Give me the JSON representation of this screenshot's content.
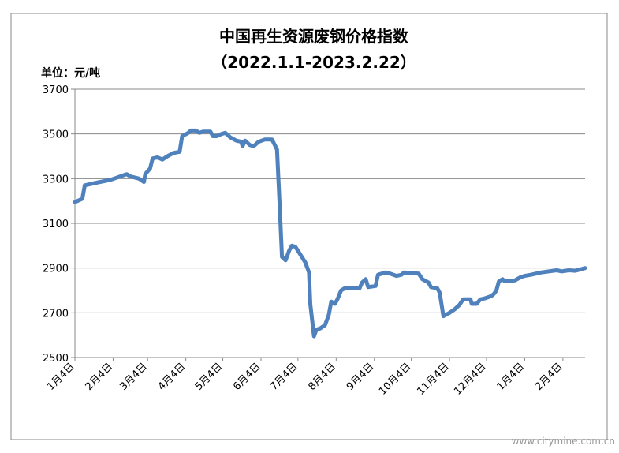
{
  "chart_data": {
    "type": "line",
    "title": "中国再生资源废钢价格指数",
    "subtitle": "（2022.1.1-2023.2.22）",
    "y_label": "单位：元/吨",
    "watermark": "www.citymine.com.cn",
    "grid": true,
    "series": [
      {
        "color": "#4f81bd",
        "x": [
          3,
          9,
          11,
          19,
          32,
          45,
          48,
          55,
          59,
          60,
          64,
          66,
          70,
          74,
          78,
          83,
          88,
          90,
          95,
          97,
          101,
          104,
          107,
          113,
          115,
          118,
          122,
          125,
          129,
          134,
          138,
          139,
          141,
          145,
          148,
          152,
          157,
          163,
          167,
          169,
          171,
          174,
          177,
          179,
          182,
          186,
          190,
          193,
          194,
          197,
          199,
          202,
          206,
          209,
          211,
          214,
          216,
          219,
          222,
          234,
          236,
          239,
          241,
          247,
          249,
          255,
          259,
          264,
          268,
          270,
          282,
          285,
          290,
          292,
          297,
          299,
          302,
          307,
          311,
          315,
          318,
          324,
          325,
          329,
          332,
          336,
          341,
          343,
          345,
          347,
          350,
          352,
          360,
          365,
          368,
          373,
          381,
          394,
          398,
          404,
          409,
          412,
          417
        ],
        "values": [
          3195,
          3210,
          3270,
          3280,
          3295,
          3320,
          3310,
          3300,
          3285,
          3320,
          3345,
          3390,
          3395,
          3385,
          3400,
          3415,
          3420,
          3490,
          3505,
          3515,
          3515,
          3505,
          3510,
          3510,
          3490,
          3490,
          3500,
          3505,
          3485,
          3470,
          3465,
          3445,
          3470,
          3450,
          3445,
          3465,
          3475,
          3475,
          3430,
          3200,
          2950,
          2935,
          2980,
          3000,
          2995,
          2960,
          2925,
          2880,
          2740,
          2595,
          2625,
          2630,
          2645,
          2690,
          2750,
          2740,
          2760,
          2800,
          2810,
          2810,
          2835,
          2850,
          2815,
          2820,
          2870,
          2880,
          2875,
          2865,
          2870,
          2880,
          2875,
          2850,
          2835,
          2815,
          2810,
          2790,
          2685,
          2700,
          2715,
          2735,
          2760,
          2760,
          2740,
          2740,
          2760,
          2765,
          2775,
          2785,
          2800,
          2840,
          2850,
          2840,
          2845,
          2860,
          2865,
          2870,
          2880,
          2890,
          2885,
          2890,
          2888,
          2892,
          2900
        ]
      }
    ],
    "xlim": [
      3,
      417
    ],
    "xticks": [
      {
        "value": 3,
        "label": "1月4日"
      },
      {
        "value": 34,
        "label": "2月4日"
      },
      {
        "value": 62,
        "label": "3月4日"
      },
      {
        "value": 93,
        "label": "4月4日"
      },
      {
        "value": 123,
        "label": "5月4日"
      },
      {
        "value": 154,
        "label": "6月4日"
      },
      {
        "value": 184,
        "label": "7月4日"
      },
      {
        "value": 215,
        "label": "8月4日"
      },
      {
        "value": 246,
        "label": "9月4日"
      },
      {
        "value": 276,
        "label": "10月4日"
      },
      {
        "value": 307,
        "label": "11月4日"
      },
      {
        "value": 337,
        "label": "12月4日"
      },
      {
        "value": 368,
        "label": "1月4日"
      },
      {
        "value": 399,
        "label": "2月4日"
      }
    ],
    "ylim": [
      2500,
      3700
    ],
    "yticks": [
      2500,
      2700,
      2900,
      3100,
      3300,
      3500,
      3700
    ]
  }
}
